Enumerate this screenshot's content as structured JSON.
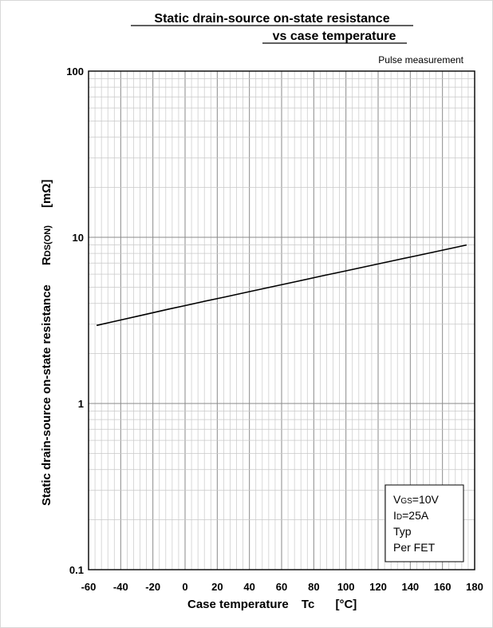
{
  "chart_data": {
    "type": "line",
    "title_line1": "Static drain-source on-state resistance",
    "title_line2": "vs case temperature",
    "annotation": "Pulse measurement",
    "xlabel": "Case temperature",
    "xlabel_symbol": "Tc",
    "xlabel_unit": "[°C]",
    "ylabel": "Static drain-source on-state resistance",
    "ylabel_symbol_main": "R",
    "ylabel_symbol_sub": "DS(ON)",
    "ylabel_unit": "[mΩ]",
    "x_ticks": [
      "-60",
      "-40",
      "-20",
      "0",
      "20",
      "40",
      "60",
      "80",
      "100",
      "120",
      "140",
      "160",
      "180"
    ],
    "y_ticks": [
      "100",
      "10",
      "1",
      "0.1"
    ],
    "xlim": [
      -60,
      180
    ],
    "ylim": [
      0.1,
      100
    ],
    "y_scale": "log",
    "grid": true,
    "conditions": {
      "vgs_main": "V",
      "vgs_sub": "GS",
      "vgs_value": "=10V",
      "id_main": "I",
      "id_sub": "D",
      "id_value": "=25A",
      "typ": "Typ",
      "per_fet": "Per FET"
    },
    "series": [
      {
        "x": [
          -55,
          -40,
          -25,
          -10,
          0,
          10,
          25,
          40,
          55,
          70,
          85,
          100,
          115,
          130,
          145,
          160,
          175
        ],
        "y": [
          2.95,
          3.18,
          3.43,
          3.7,
          3.88,
          4.08,
          4.38,
          4.71,
          5.06,
          5.44,
          5.85,
          6.28,
          6.75,
          7.25,
          7.79,
          8.37,
          8.99
        ]
      }
    ]
  }
}
